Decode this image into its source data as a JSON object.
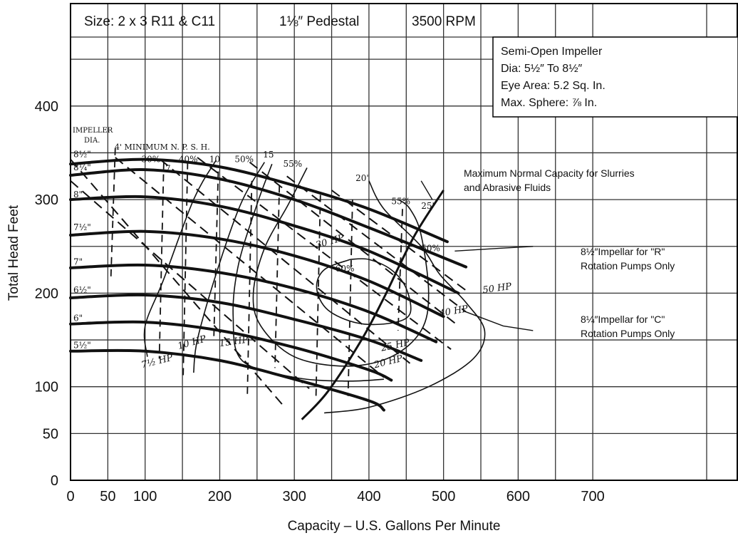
{
  "chart_data": {
    "type": "line",
    "header": {
      "size": "Size: 2 x 3 R11 & C11",
      "pedestal": "1⅛″ Pedestal",
      "rpm": "3500 RPM"
    },
    "info_box": [
      "Semi-Open Impeller",
      "Dia: 5½″ To 8½″",
      "Eye Area:  5.2 Sq. In.",
      "Max. Sphere: ⅞ In."
    ],
    "xlabel": "Capacity – U.S. Gallons Per Minute",
    "ylabel": "Total Head Feet",
    "xlim": [
      0,
      750
    ],
    "ylim": [
      0,
      470
    ],
    "x_ticks": [
      "0",
      "50",
      "100",
      "200",
      "300",
      "400",
      "500",
      "600",
      "700"
    ],
    "y_ticks": [
      "0",
      "50",
      "100",
      "200",
      "300",
      "400"
    ],
    "impeller_label": [
      "IMPELLER",
      "DIA."
    ],
    "npsh_title": "4' MINIMUM N. P. S. H.",
    "series": [
      {
        "name": "8½\"",
        "x": [
          0,
          100,
          200,
          300,
          400,
          505
        ],
        "y": [
          338,
          343,
          335,
          315,
          290,
          255
        ]
      },
      {
        "name": "8¼\"",
        "x": [
          0,
          100,
          200,
          300,
          400,
          530
        ],
        "y": [
          326,
          332,
          322,
          300,
          270,
          228
        ]
      },
      {
        "name": "8\"",
        "x": [
          0,
          100,
          200,
          300,
          400,
          520
        ],
        "y": [
          300,
          303,
          293,
          272,
          245,
          200
        ]
      },
      {
        "name": "7½\"",
        "x": [
          0,
          100,
          200,
          300,
          400,
          500
        ],
        "y": [
          262,
          266,
          258,
          240,
          213,
          175
        ]
      },
      {
        "name": "7\"",
        "x": [
          0,
          100,
          200,
          300,
          400,
          490
        ],
        "y": [
          227,
          230,
          222,
          205,
          180,
          148
        ]
      },
      {
        "name": "6½\"",
        "x": [
          0,
          100,
          200,
          300,
          400,
          470
        ],
        "y": [
          195,
          198,
          190,
          172,
          150,
          128
        ]
      },
      {
        "name": "6\"",
        "x": [
          0,
          100,
          200,
          300,
          400,
          430
        ],
        "y": [
          167,
          169,
          160,
          142,
          118,
          107
        ]
      },
      {
        "name": "5½\"",
        "x": [
          0,
          100,
          200,
          300,
          400,
          420
        ],
        "y": [
          138,
          138,
          128,
          108,
          85,
          75
        ]
      }
    ],
    "efficiency_labels": [
      "30%",
      "40%",
      "50%",
      "55%",
      "55%",
      "60%",
      "50%"
    ],
    "npsh_labels": [
      "7",
      "10",
      "15",
      "20'",
      "25'"
    ],
    "horsepower_labels": [
      "7½ HP",
      "10 HP",
      "15 HP",
      "20 HP",
      "25 HP",
      "30 HP",
      "40 HP",
      "50 HP"
    ],
    "annotations": [
      {
        "lines": [
          "Maximum Normal Capacity for Slurries",
          "and Abrasive Fluids"
        ]
      },
      {
        "lines": [
          "8½″Impellar for \"R\"",
          "Rotation Pumps Only"
        ]
      },
      {
        "lines": [
          "8¼″Impellar for \"C\"",
          "Rotation Pumps Only"
        ]
      }
    ],
    "grid": true
  }
}
